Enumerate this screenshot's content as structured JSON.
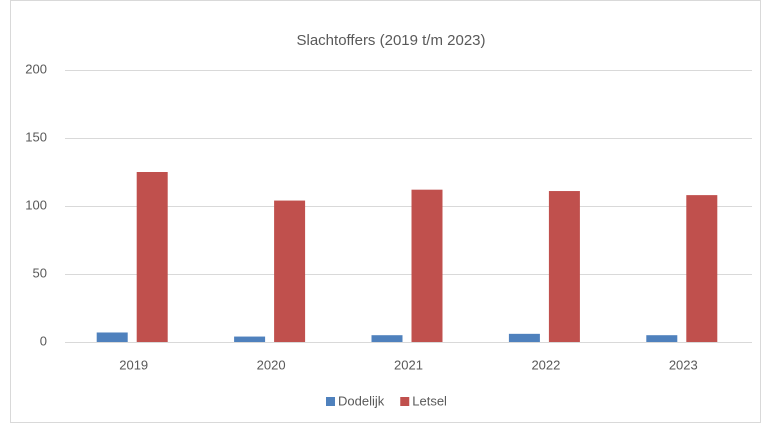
{
  "chart_data": {
    "type": "bar",
    "title": "Slachtoffers (2019 t/m 2023)",
    "categories": [
      "2019",
      "2020",
      "2021",
      "2022",
      "2023"
    ],
    "series": [
      {
        "name": "Dodelijk",
        "color": "#4f81bd",
        "values": [
          7,
          4,
          5,
          6,
          5
        ]
      },
      {
        "name": "Letsel",
        "color": "#c0504d",
        "values": [
          125,
          104,
          112,
          111,
          108
        ]
      }
    ],
    "ylim": [
      0,
      200
    ],
    "yticks": [
      0,
      50,
      100,
      150,
      200
    ],
    "grid": true,
    "legend": "bottom"
  }
}
